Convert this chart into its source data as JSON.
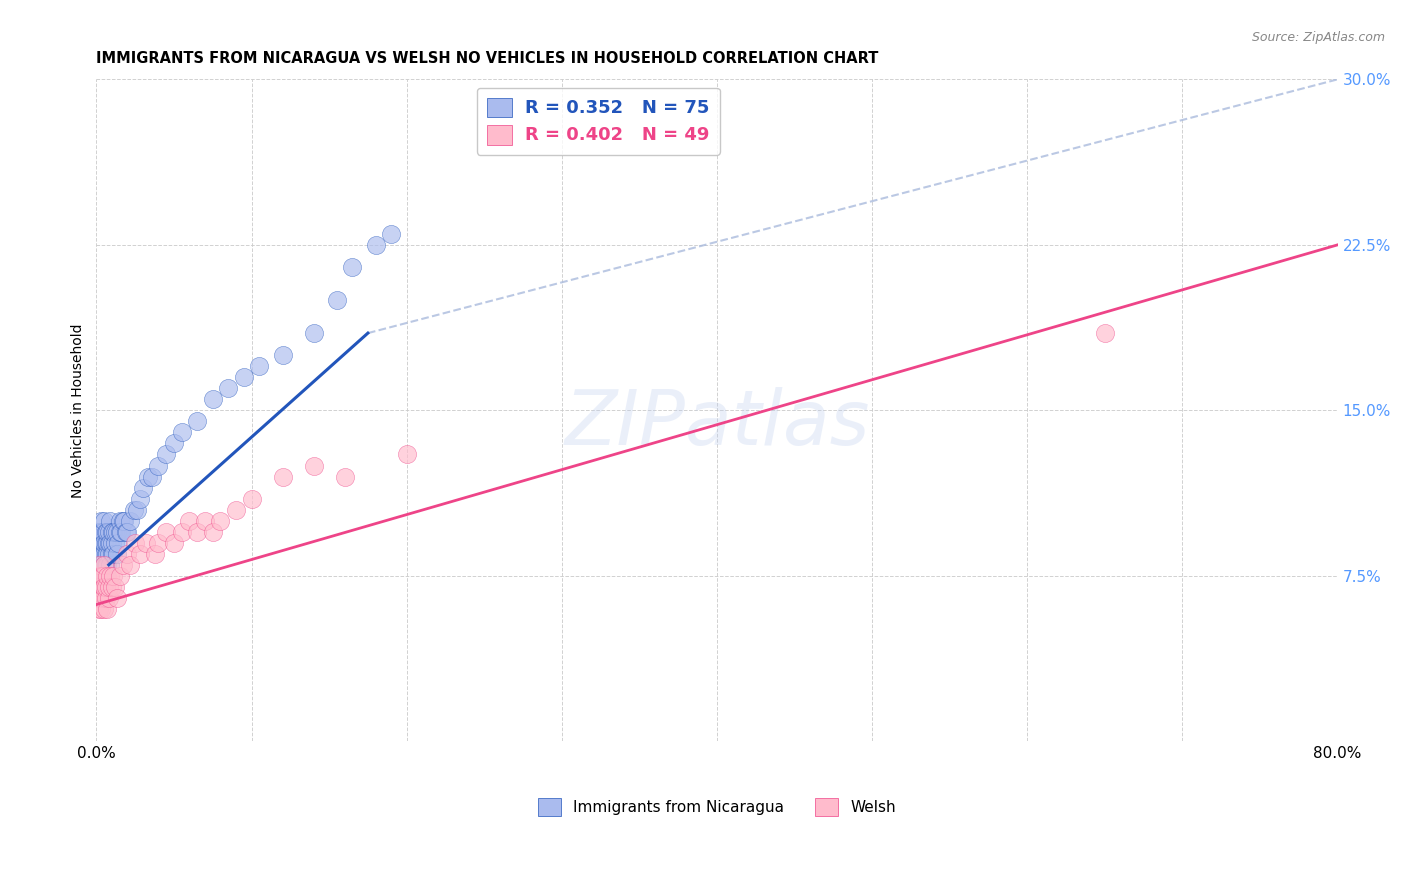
{
  "title": "IMMIGRANTS FROM NICARAGUA VS WELSH NO VEHICLES IN HOUSEHOLD CORRELATION CHART",
  "source": "Source: ZipAtlas.com",
  "ylabel": "No Vehicles in Household",
  "xlim": [
    0,
    0.8
  ],
  "ylim": [
    0,
    0.3
  ],
  "yticks": [
    0.0,
    0.075,
    0.15,
    0.225,
    0.3
  ],
  "yticklabels": [
    "",
    "7.5%",
    "15.0%",
    "22.5%",
    "30.0%"
  ],
  "xtick_positions": [
    0.0,
    0.1,
    0.2,
    0.3,
    0.4,
    0.5,
    0.6,
    0.7,
    0.8
  ],
  "xtick_labels": [
    "0.0%",
    "",
    "",
    "",
    "",
    "",
    "",
    "",
    "80.0%"
  ],
  "watermark": "ZIPatlas",
  "background_color": "#ffffff",
  "grid_color": "#cccccc",
  "series1_color": "#aabbee",
  "series2_color": "#ffbbcc",
  "trendline1_color": "#2255bb",
  "trendline2_color": "#ee4488",
  "refline_color": "#aabbdd",
  "title_fontsize": 10.5,
  "tick_fontsize": 11,
  "tick_color": "#5599ff",
  "nicaragua_x": [
    0.001,
    0.001,
    0.001,
    0.002,
    0.002,
    0.002,
    0.002,
    0.003,
    0.003,
    0.003,
    0.003,
    0.003,
    0.004,
    0.004,
    0.004,
    0.004,
    0.005,
    0.005,
    0.005,
    0.005,
    0.005,
    0.006,
    0.006,
    0.006,
    0.006,
    0.006,
    0.007,
    0.007,
    0.007,
    0.007,
    0.008,
    0.008,
    0.008,
    0.009,
    0.009,
    0.009,
    0.01,
    0.01,
    0.01,
    0.011,
    0.011,
    0.012,
    0.012,
    0.013,
    0.013,
    0.014,
    0.015,
    0.015,
    0.016,
    0.017,
    0.018,
    0.019,
    0.02,
    0.022,
    0.024,
    0.026,
    0.028,
    0.03,
    0.033,
    0.036,
    0.04,
    0.045,
    0.05,
    0.055,
    0.065,
    0.075,
    0.085,
    0.095,
    0.105,
    0.12,
    0.14,
    0.155,
    0.165,
    0.18,
    0.19
  ],
  "nicaragua_y": [
    0.085,
    0.095,
    0.075,
    0.09,
    0.08,
    0.095,
    0.07,
    0.085,
    0.095,
    0.075,
    0.1,
    0.08,
    0.09,
    0.085,
    0.075,
    0.095,
    0.085,
    0.09,
    0.08,
    0.075,
    0.1,
    0.08,
    0.09,
    0.085,
    0.095,
    0.075,
    0.085,
    0.09,
    0.08,
    0.095,
    0.085,
    0.09,
    0.095,
    0.08,
    0.09,
    0.1,
    0.085,
    0.09,
    0.095,
    0.085,
    0.095,
    0.09,
    0.095,
    0.085,
    0.095,
    0.09,
    0.095,
    0.1,
    0.095,
    0.1,
    0.1,
    0.095,
    0.095,
    0.1,
    0.105,
    0.105,
    0.11,
    0.115,
    0.12,
    0.12,
    0.125,
    0.13,
    0.135,
    0.14,
    0.145,
    0.155,
    0.16,
    0.165,
    0.17,
    0.175,
    0.185,
    0.2,
    0.215,
    0.225,
    0.23
  ],
  "welsh_x": [
    0.001,
    0.001,
    0.002,
    0.002,
    0.002,
    0.003,
    0.003,
    0.003,
    0.004,
    0.004,
    0.004,
    0.005,
    0.005,
    0.005,
    0.006,
    0.006,
    0.007,
    0.007,
    0.008,
    0.008,
    0.009,
    0.01,
    0.011,
    0.012,
    0.013,
    0.015,
    0.017,
    0.02,
    0.022,
    0.025,
    0.028,
    0.032,
    0.038,
    0.04,
    0.045,
    0.05,
    0.055,
    0.06,
    0.065,
    0.07,
    0.075,
    0.08,
    0.09,
    0.1,
    0.12,
    0.14,
    0.16,
    0.2,
    0.65
  ],
  "welsh_y": [
    0.065,
    0.075,
    0.06,
    0.07,
    0.08,
    0.065,
    0.075,
    0.06,
    0.07,
    0.065,
    0.075,
    0.06,
    0.07,
    0.08,
    0.065,
    0.07,
    0.06,
    0.075,
    0.065,
    0.07,
    0.075,
    0.07,
    0.075,
    0.07,
    0.065,
    0.075,
    0.08,
    0.085,
    0.08,
    0.09,
    0.085,
    0.09,
    0.085,
    0.09,
    0.095,
    0.09,
    0.095,
    0.1,
    0.095,
    0.1,
    0.095,
    0.1,
    0.105,
    0.11,
    0.12,
    0.125,
    0.12,
    0.13,
    0.185
  ],
  "trendline1_x": [
    0.008,
    0.175
  ],
  "trendline1_y": [
    0.08,
    0.185
  ],
  "trendline2_x": [
    0.0,
    0.8
  ],
  "trendline2_y": [
    0.062,
    0.225
  ],
  "refline_x": [
    0.175,
    0.8
  ],
  "refline_y": [
    0.185,
    0.3
  ]
}
